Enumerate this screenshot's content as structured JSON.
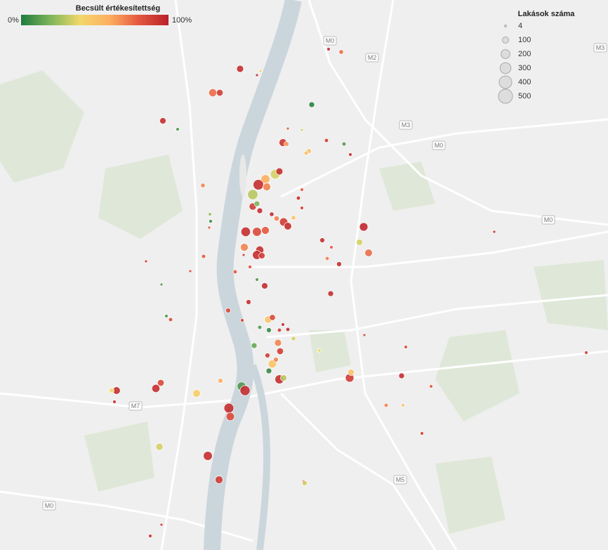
{
  "map": {
    "lon_range": [
      18.95,
      19.2098
    ],
    "lat_range": [
      47.4284,
      47.585
    ],
    "color_scale": [
      "#1e7b3c",
      "#7fb55a",
      "#f2d86a",
      "#fdae61",
      "#e4573e",
      "#b9202a"
    ],
    "size_scale": {
      "min_radius": 1.5,
      "factor": 0.45
    }
  },
  "color_legend": {
    "title": "Becsült értékesítettség",
    "min": {
      "value": 0,
      "label": "0%"
    },
    "max": {
      "value": 100,
      "label": "100%"
    }
  },
  "size_legend": {
    "title": "Lakások száma",
    "values": [
      4,
      100,
      200,
      300,
      400,
      500
    ]
  },
  "road_labels": [
    {
      "label": "M0",
      "lon": 19.091,
      "lat": 47.5734
    },
    {
      "label": "M2",
      "lon": 19.109,
      "lat": 47.5686
    },
    {
      "label": "M3",
      "lon": 19.2065,
      "lat": 47.5714
    },
    {
      "label": "M3",
      "lon": 19.1234,
      "lat": 47.5494
    },
    {
      "label": "M0",
      "lon": 19.1375,
      "lat": 47.5436
    },
    {
      "label": "M0",
      "lon": 19.1843,
      "lat": 47.5224
    },
    {
      "label": "M7",
      "lon": 19.0079,
      "lat": 47.4694
    },
    {
      "label": "M5",
      "lon": 19.121,
      "lat": 47.4484
    },
    {
      "label": "M0",
      "lon": 18.971,
      "lat": 47.441
    }
  ],
  "points": [
    {
      "lon": 19.0526,
      "lat": 47.5654,
      "units": 120,
      "sold": 95
    },
    {
      "lon": 19.0613,
      "lat": 47.5648,
      "units": 20,
      "sold": 45
    },
    {
      "lon": 19.0598,
      "lat": 47.5636,
      "units": 20,
      "sold": 95
    },
    {
      "lon": 19.0409,
      "lat": 47.5586,
      "units": 160,
      "sold": 75
    },
    {
      "lon": 19.0439,
      "lat": 47.5586,
      "units": 110,
      "sold": 90
    },
    {
      "lon": 19.0832,
      "lat": 47.5552,
      "units": 80,
      "sold": 2
    },
    {
      "lon": 19.0196,
      "lat": 47.5506,
      "units": 100,
      "sold": 95
    },
    {
      "lon": 19.0259,
      "lat": 47.5482,
      "units": 30,
      "sold": 10
    },
    {
      "lon": 19.073,
      "lat": 47.5484,
      "units": 20,
      "sold": 80
    },
    {
      "lon": 19.079,
      "lat": 47.548,
      "units": 20,
      "sold": 35
    },
    {
      "lon": 19.0709,
      "lat": 47.5444,
      "units": 150,
      "sold": 92
    },
    {
      "lon": 19.0724,
      "lat": 47.544,
      "units": 60,
      "sold": 65
    },
    {
      "lon": 19.0895,
      "lat": 47.545,
      "units": 40,
      "sold": 90
    },
    {
      "lon": 19.097,
      "lat": 47.544,
      "units": 40,
      "sold": 10
    },
    {
      "lon": 19.0997,
      "lat": 47.541,
      "units": 30,
      "sold": 95
    },
    {
      "lon": 19.082,
      "lat": 47.542,
      "units": 60,
      "sold": 50
    },
    {
      "lon": 19.0808,
      "lat": 47.5414,
      "units": 40,
      "sold": 55
    },
    {
      "lon": 19.0676,
      "lat": 47.5354,
      "units": 230,
      "sold": 35
    },
    {
      "lon": 19.0694,
      "lat": 47.5362,
      "units": 120,
      "sold": 95
    },
    {
      "lon": 19.0634,
      "lat": 47.534,
      "units": 200,
      "sold": 60
    },
    {
      "lon": 19.0604,
      "lat": 47.5324,
      "units": 270,
      "sold": 95
    },
    {
      "lon": 19.064,
      "lat": 47.5318,
      "units": 150,
      "sold": 70
    },
    {
      "lon": 19.058,
      "lat": 47.5296,
      "units": 260,
      "sold": 30
    },
    {
      "lon": 19.058,
      "lat": 47.5262,
      "units": 130,
      "sold": 90
    },
    {
      "lon": 19.061,
      "lat": 47.525,
      "units": 80,
      "sold": 95
    },
    {
      "lon": 19.0598,
      "lat": 47.527,
      "units": 80,
      "sold": 20
    },
    {
      "lon": 19.079,
      "lat": 47.531,
      "units": 30,
      "sold": 80
    },
    {
      "lon": 19.0775,
      "lat": 47.5286,
      "units": 40,
      "sold": 95
    },
    {
      "lon": 19.079,
      "lat": 47.5258,
      "units": 30,
      "sold": 90
    },
    {
      "lon": 19.0661,
      "lat": 47.524,
      "units": 50,
      "sold": 95
    },
    {
      "lon": 19.0712,
      "lat": 47.5218,
      "units": 170,
      "sold": 90
    },
    {
      "lon": 19.073,
      "lat": 47.5206,
      "units": 140,
      "sold": 95
    },
    {
      "lon": 19.0682,
      "lat": 47.5228,
      "units": 70,
      "sold": 70
    },
    {
      "lon": 19.0754,
      "lat": 47.523,
      "units": 50,
      "sold": 50
    },
    {
      "lon": 19.055,
      "lat": 47.519,
      "units": 220,
      "sold": 95
    },
    {
      "lon": 19.0598,
      "lat": 47.519,
      "units": 200,
      "sold": 85
    },
    {
      "lon": 19.0634,
      "lat": 47.5194,
      "units": 150,
      "sold": 80
    },
    {
      "lon": 19.0544,
      "lat": 47.5146,
      "units": 150,
      "sold": 70
    },
    {
      "lon": 19.061,
      "lat": 47.5138,
      "units": 160,
      "sold": 95
    },
    {
      "lon": 19.0598,
      "lat": 47.5124,
      "units": 200,
      "sold": 95
    },
    {
      "lon": 19.0619,
      "lat": 47.5122,
      "units": 100,
      "sold": 90
    },
    {
      "lon": 19.1054,
      "lat": 47.5204,
      "units": 180,
      "sold": 97
    },
    {
      "lon": 19.1036,
      "lat": 47.516,
      "units": 100,
      "sold": 35
    },
    {
      "lon": 19.1075,
      "lat": 47.513,
      "units": 140,
      "sold": 75
    },
    {
      "lon": 19.0877,
      "lat": 47.5166,
      "units": 60,
      "sold": 95
    },
    {
      "lon": 19.0916,
      "lat": 47.5146,
      "units": 30,
      "sold": 80
    },
    {
      "lon": 19.0898,
      "lat": 47.5114,
      "units": 40,
      "sold": 70
    },
    {
      "lon": 19.0949,
      "lat": 47.5098,
      "units": 60,
      "sold": 95
    },
    {
      "lon": 19.0367,
      "lat": 47.5322,
      "units": 50,
      "sold": 70
    },
    {
      "lon": 19.037,
      "lat": 47.512,
      "units": 40,
      "sold": 80
    },
    {
      "lon": 19.0505,
      "lat": 47.5076,
      "units": 40,
      "sold": 80
    },
    {
      "lon": 19.0568,
      "lat": 47.509,
      "units": 30,
      "sold": 85
    },
    {
      "lon": 19.0631,
      "lat": 47.5036,
      "units": 100,
      "sold": 95
    },
    {
      "lon": 19.0598,
      "lat": 47.5054,
      "units": 30,
      "sold": 10
    },
    {
      "lon": 19.0562,
      "lat": 47.499,
      "units": 60,
      "sold": 95
    },
    {
      "lon": 19.0475,
      "lat": 47.4966,
      "units": 60,
      "sold": 85
    },
    {
      "lon": 19.0535,
      "lat": 47.4938,
      "units": 30,
      "sold": 90
    },
    {
      "lon": 19.0646,
      "lat": 47.494,
      "units": 130,
      "sold": 50
    },
    {
      "lon": 19.0664,
      "lat": 47.4946,
      "units": 90,
      "sold": 85
    },
    {
      "lon": 19.061,
      "lat": 47.4918,
      "units": 40,
      "sold": 10
    },
    {
      "lon": 19.0649,
      "lat": 47.491,
      "units": 60,
      "sold": 5
    },
    {
      "lon": 19.0694,
      "lat": 47.491,
      "units": 40,
      "sold": 90
    },
    {
      "lon": 19.0709,
      "lat": 47.4926,
      "units": 30,
      "sold": 95
    },
    {
      "lon": 19.073,
      "lat": 47.4912,
      "units": 40,
      "sold": 95
    },
    {
      "lon": 19.0754,
      "lat": 47.4886,
      "units": 50,
      "sold": 35
    },
    {
      "lon": 19.0688,
      "lat": 47.4874,
      "units": 120,
      "sold": 70
    },
    {
      "lon": 19.0697,
      "lat": 47.485,
      "units": 110,
      "sold": 90
    },
    {
      "lon": 19.0586,
      "lat": 47.4866,
      "units": 80,
      "sold": 15
    },
    {
      "lon": 19.0643,
      "lat": 47.4838,
      "units": 60,
      "sold": 90
    },
    {
      "lon": 19.0664,
      "lat": 47.4814,
      "units": 170,
      "sold": 50
    },
    {
      "lon": 19.0649,
      "lat": 47.4794,
      "units": 80,
      "sold": 5
    },
    {
      "lon": 19.0679,
      "lat": 47.4826,
      "units": 60,
      "sold": 70
    },
    {
      "lon": 19.0694,
      "lat": 47.477,
      "units": 200,
      "sold": 95
    },
    {
      "lon": 19.0712,
      "lat": 47.4774,
      "units": 100,
      "sold": 30
    },
    {
      "lon": 19.0532,
      "lat": 47.475,
      "units": 190,
      "sold": 10
    },
    {
      "lon": 19.0547,
      "lat": 47.4738,
      "units": 250,
      "sold": 95
    },
    {
      "lon": 19.0478,
      "lat": 47.4688,
      "units": 240,
      "sold": 95
    },
    {
      "lon": 19.0484,
      "lat": 47.4664,
      "units": 170,
      "sold": 85
    },
    {
      "lon": 19.0388,
      "lat": 47.4552,
      "units": 200,
      "sold": 95
    },
    {
      "lon": 19.0436,
      "lat": 47.4484,
      "units": 150,
      "sold": 90
    },
    {
      "lon": 19.0187,
      "lat": 47.476,
      "units": 110,
      "sold": 85
    },
    {
      "lon": 19.0166,
      "lat": 47.4744,
      "units": 160,
      "sold": 95
    },
    {
      "lon": 18.9998,
      "lat": 47.4738,
      "units": 140,
      "sold": 95
    },
    {
      "lon": 18.9977,
      "lat": 47.4738,
      "units": 60,
      "sold": 40
    },
    {
      "lon": 19.034,
      "lat": 47.473,
      "units": 150,
      "sold": 45
    },
    {
      "lon": 19.0442,
      "lat": 47.4766,
      "units": 60,
      "sold": 60
    },
    {
      "lon": 19.0181,
      "lat": 47.4578,
      "units": 130,
      "sold": 35
    },
    {
      "lon": 19.0994,
      "lat": 47.4774,
      "units": 180,
      "sold": 90
    },
    {
      "lon": 19.1,
      "lat": 47.479,
      "units": 100,
      "sold": 50
    },
    {
      "lon": 19.1216,
      "lat": 47.478,
      "units": 80,
      "sold": 95
    },
    {
      "lon": 19.1234,
      "lat": 47.4862,
      "units": 30,
      "sold": 85
    },
    {
      "lon": 19.0913,
      "lat": 47.5014,
      "units": 80,
      "sold": 95
    },
    {
      "lon": 19.0865,
      "lat": 47.4852,
      "units": 30,
      "sold": 40
    },
    {
      "lon": 19.1057,
      "lat": 47.4896,
      "units": 20,
      "sold": 85
    },
    {
      "lon": 19.1342,
      "lat": 47.475,
      "units": 30,
      "sold": 80
    },
    {
      "lon": 19.115,
      "lat": 47.4696,
      "units": 40,
      "sold": 70
    },
    {
      "lon": 19.1222,
      "lat": 47.4696,
      "units": 30,
      "sold": 50
    },
    {
      "lon": 19.1303,
      "lat": 47.4616,
      "units": 30,
      "sold": 90
    },
    {
      "lon": 19.0799,
      "lat": 47.4478,
      "units": 40,
      "sold": 85
    },
    {
      "lon": 19.0802,
      "lat": 47.4474,
      "units": 60,
      "sold": 35
    },
    {
      "lon": 19.0142,
      "lat": 47.4324,
      "units": 30,
      "sold": 95
    },
    {
      "lon": 19.019,
      "lat": 47.4356,
      "units": 20,
      "sold": 90
    },
    {
      "lon": 19.2005,
      "lat": 47.4846,
      "units": 30,
      "sold": 90
    },
    {
      "lon": 19.1612,
      "lat": 47.519,
      "units": 20,
      "sold": 95
    },
    {
      "lon": 19.0958,
      "lat": 47.5702,
      "units": 50,
      "sold": 75
    },
    {
      "lon": 19.0904,
      "lat": 47.571,
      "units": 30,
      "sold": 95
    },
    {
      "lon": 18.9989,
      "lat": 47.4706,
      "units": 30,
      "sold": 95
    },
    {
      "lon": 19.0229,
      "lat": 47.494,
      "units": 40,
      "sold": 85
    },
    {
      "lon": 19.0211,
      "lat": 47.495,
      "units": 30,
      "sold": 10
    },
    {
      "lon": 19.019,
      "lat": 47.504,
      "units": 20,
      "sold": 10
    },
    {
      "lon": 19.0124,
      "lat": 47.5106,
      "units": 20,
      "sold": 90
    },
    {
      "lon": 19.0313,
      "lat": 47.5078,
      "units": 20,
      "sold": 85
    },
    {
      "lon": 19.0397,
      "lat": 47.524,
      "units": 30,
      "sold": 25
    },
    {
      "lon": 19.04,
      "lat": 47.522,
      "units": 30,
      "sold": 5
    },
    {
      "lon": 19.0394,
      "lat": 47.5202,
      "units": 20,
      "sold": 80
    },
    {
      "lon": 19.0541,
      "lat": 47.5124,
      "units": 20,
      "sold": 90
    }
  ]
}
